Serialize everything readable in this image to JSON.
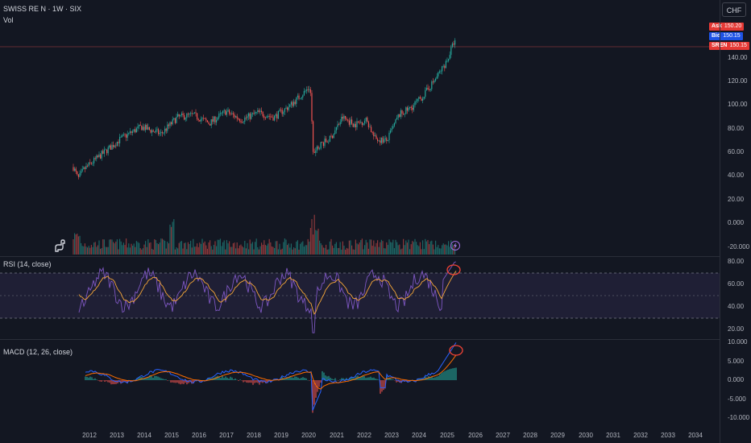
{
  "header": {
    "symbol_title": "SWISS RE N · 1W · SIX",
    "vol_label": "Vol"
  },
  "currency_button": "CHF",
  "price_badges": [
    {
      "tag": "Ask",
      "value": "150.20",
      "color": "#e53935"
    },
    {
      "tag": "Bid",
      "value": "150.15",
      "color": "#1e53e5"
    },
    {
      "tag": "SREN",
      "value": "150.15",
      "color": "#e53935"
    }
  ],
  "price_axis": [
    "140.00",
    "120.00",
    "100.00",
    "80.00",
    "60.00",
    "40.00",
    "20.00",
    "0.000",
    "-20.000"
  ],
  "rsi": {
    "label": "RSI (14, close)",
    "axis": [
      "80.00",
      "60.00",
      "40.00",
      "20.00"
    ]
  },
  "macd": {
    "label": "MACD (12, 26, close)",
    "axis": [
      "10.000",
      "5.000",
      "0.000",
      "-5.000",
      "-10.000"
    ]
  },
  "time_axis": [
    "2012",
    "2013",
    "2014",
    "2015",
    "2016",
    "2017",
    "2018",
    "2019",
    "2020",
    "2021",
    "2022",
    "2023",
    "2024",
    "2025",
    "2026",
    "2027",
    "2028",
    "2029",
    "2030",
    "2031",
    "2032",
    "2033",
    "2034"
  ],
  "colors": {
    "background": "#131722",
    "up": "#26a69a",
    "down": "#ef5350",
    "rsi_line": "#7e57c2",
    "rsi_ma": "#f7a738",
    "macd_line": "#2962ff",
    "signal_line": "#ff6d00",
    "annotation": "#f44336"
  },
  "icons": {
    "logo": "tradingview-dino-icon",
    "event": "lightning-icon"
  }
}
